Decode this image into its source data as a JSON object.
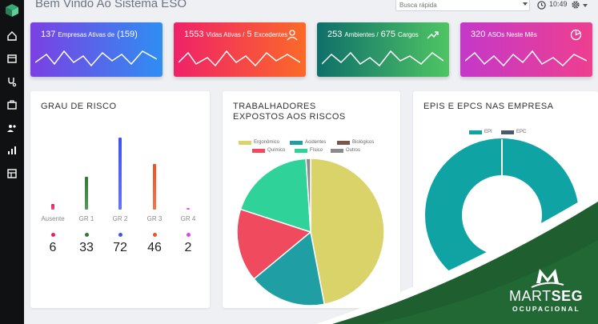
{
  "header": {
    "title": "Bem Vindo Ao Sistema ESO",
    "search_placeholder": "Busca rápida",
    "time": "10:49"
  },
  "stats": [
    {
      "number": "137",
      "label": "Empresas Ativas de",
      "extra": "(159)",
      "icon": "folder-icon"
    },
    {
      "number": "1553",
      "label": "Vidas Ativas /",
      "extra_number": "5",
      "extra": "Excedentes",
      "icon": "users-icon"
    },
    {
      "number": "253",
      "label": "Ambientes /",
      "extra_number": "675",
      "extra": "Cargos",
      "icon": "trend-icon"
    },
    {
      "number": "320",
      "label": "ASOs Neste Mês",
      "icon": "pie-icon"
    }
  ],
  "grau_de_risco": {
    "title": "GRAU DE RISCO",
    "items": [
      {
        "label": "Ausente",
        "count": "6",
        "level": 6,
        "color": "#e91e63"
      },
      {
        "label": "GR 1",
        "count": "33",
        "level": 33,
        "color": "#2e7d32"
      },
      {
        "label": "GR 2",
        "count": "72",
        "level": 72,
        "color": "#3f51f5"
      },
      {
        "label": "GR 3",
        "count": "46",
        "level": 46,
        "color": "#f4511e"
      },
      {
        "label": "GR 4",
        "count": "2",
        "level": 2,
        "color": "#e040fb"
      }
    ]
  },
  "trabalhadores": {
    "title": "TRABALHADORES EXPOSTOS AOS RISCOS",
    "legend": [
      {
        "name": "Ergonômico",
        "color": "#d9d36a"
      },
      {
        "name": "Acidentes",
        "color": "#1f9fa3"
      },
      {
        "name": "Biológicos",
        "color": "#7a5548"
      },
      {
        "name": "Químico",
        "color": "#f04a5e"
      },
      {
        "name": "Físico",
        "color": "#2fd39a"
      },
      {
        "name": "Outros",
        "color": "#8a8a8a"
      }
    ]
  },
  "epis": {
    "title": "EPIS E EPCS NAS EMPRESA",
    "legend": [
      {
        "name": "EPI",
        "color": "#0fa3a3"
      },
      {
        "name": "EPC",
        "color": "#4b5a6b"
      }
    ]
  },
  "brand": {
    "name_light": "MART",
    "name_bold": "SEG",
    "sub": "OCUPACIONAL"
  },
  "colors": {
    "sidebar": "#0f1113",
    "background": "#eef0f4",
    "brand_green": "#1f5e2f"
  }
}
